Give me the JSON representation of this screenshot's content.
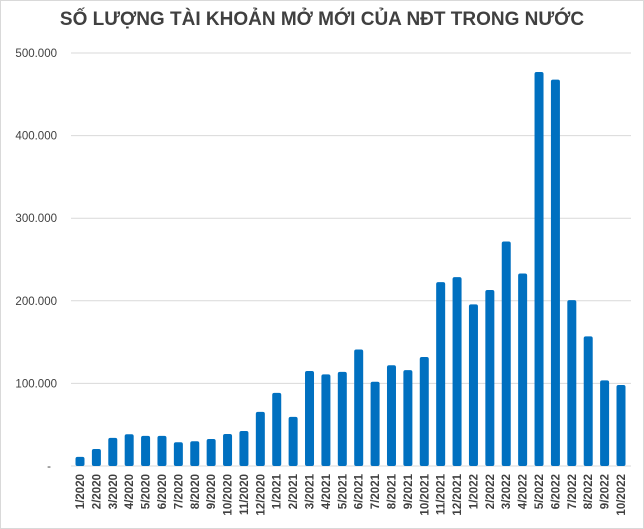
{
  "chart_data": {
    "type": "bar",
    "title": "SỐ LƯỢNG TÀI KHOẢN MỞ MỚI CỦA NĐT TRONG NƯỚC",
    "xlabel": "",
    "ylabel": "",
    "ylim": [
      0,
      500000
    ],
    "yticks": [
      0,
      100000,
      200000,
      300000,
      400000,
      500000
    ],
    "ytick_labels": [
      "-",
      "100.000",
      "200.000",
      "300.000",
      "400.000",
      "500.000"
    ],
    "grid": true,
    "bar_color": "#0070c0",
    "categories": [
      "1/2020",
      "2/2020",
      "3/2020",
      "4/2020",
      "5/2020",
      "6/2020",
      "7/2020",
      "8/2020",
      "9/2020",
      "10/2020",
      "11/2020",
      "12/2020",
      "1/2021",
      "2/2021",
      "3/2021",
      "4/2021",
      "5/2021",
      "6/2021",
      "7/2021",
      "8/2021",
      "9/2021",
      "10/2021",
      "11/2021",
      "12/2021",
      "1/2022",
      "2/2022",
      "3/2022",
      "4/2022",
      "5/2022",
      "6/2022",
      "7/2022",
      "8/2022",
      "9/2022",
      "10/2022"
    ],
    "values": [
      11000,
      20600,
      34000,
      38400,
      36400,
      36400,
      28700,
      30000,
      32700,
      38800,
      42400,
      65500,
      88500,
      59400,
      115000,
      111000,
      114000,
      141000,
      102000,
      122000,
      116000,
      132000,
      222600,
      228600,
      195600,
      213000,
      271800,
      233000,
      477000,
      467700,
      200800,
      156900,
      103600,
      98000
    ]
  }
}
